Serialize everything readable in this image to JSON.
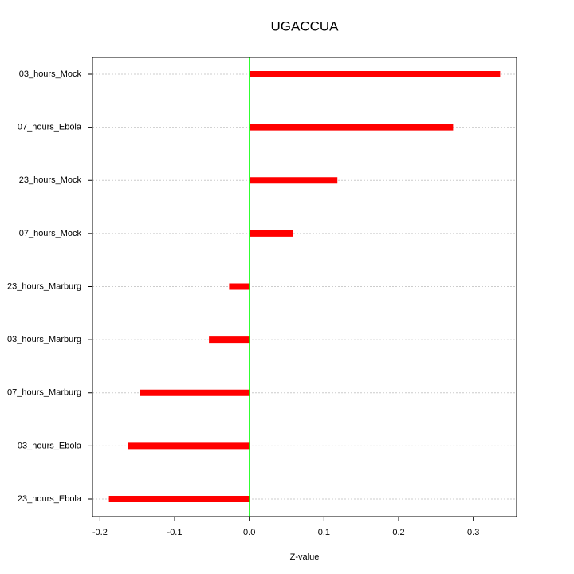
{
  "chart_data": {
    "type": "hbar",
    "title": "UGACCUA",
    "x_label": "Z-value",
    "categories": [
      "03_hours_Mock",
      "07_hours_Ebola",
      "23_hours_Mock",
      "07_hours_Mock",
      "23_hours_Marburg",
      "03_hours_Marburg",
      "07_hours_Marburg",
      "03_hours_Ebola",
      "23_hours_Ebola"
    ],
    "values": [
      0.336,
      0.273,
      0.118,
      0.059,
      -0.027,
      -0.054,
      -0.147,
      -0.163,
      -0.188
    ],
    "color": "#ff0000",
    "zero_line_color": "#00ff00",
    "xlim": [
      -0.21,
      0.358
    ],
    "xticks": [
      -0.2,
      -0.1,
      {
        "value": 0,
        "label": "0.0"
      },
      0.1,
      0.2,
      0.3
    ],
    "grid": true
  }
}
